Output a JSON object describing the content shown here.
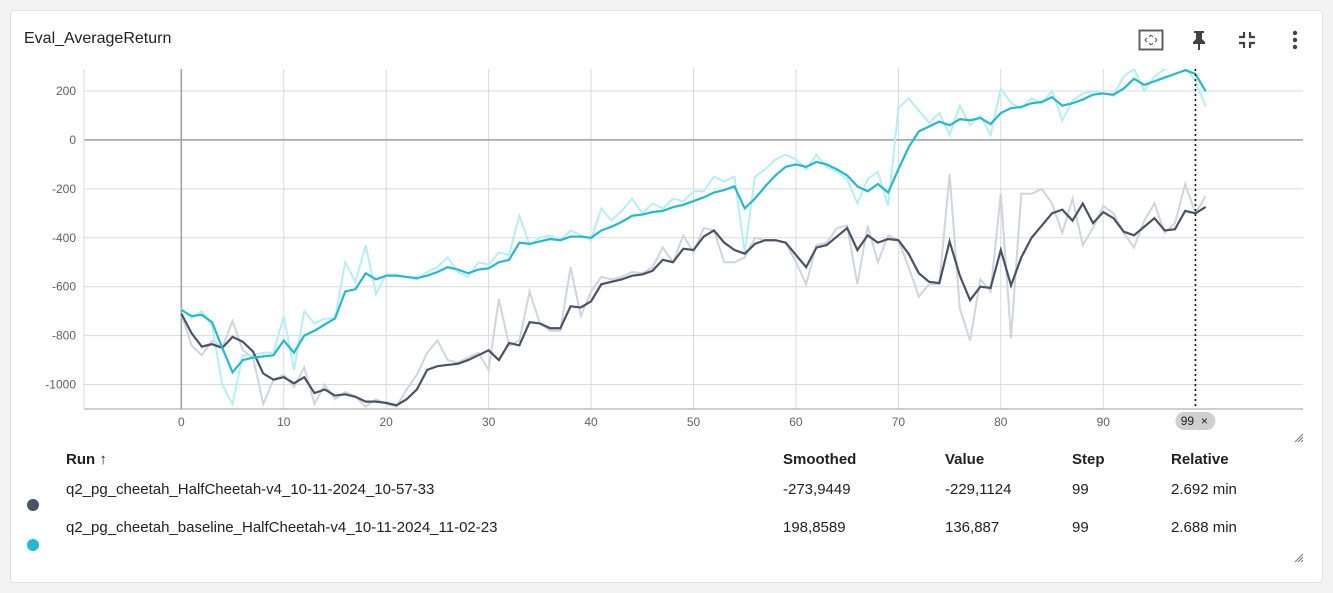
{
  "card": {
    "title": "Eval_AverageReturn"
  },
  "toolbar": {
    "icons": [
      "fit-domain-icon",
      "pin-icon",
      "collapse-icon",
      "more-vert-icon"
    ]
  },
  "chart_data": {
    "type": "line",
    "xlabel": "",
    "ylabel": "",
    "xlim": [
      -9.5,
      109.5
    ],
    "ylim": [
      -1100,
      290
    ],
    "x_ticks": [
      0,
      10,
      20,
      30,
      40,
      50,
      60,
      70,
      80,
      90
    ],
    "y_ticks": [
      -1000,
      -800,
      -600,
      -400,
      -200,
      0,
      200
    ],
    "x_tick_labels": [
      "0",
      "10",
      "20",
      "30",
      "40",
      "50",
      "60",
      "70",
      "80",
      "90"
    ],
    "y_tick_labels": [
      "-1000",
      "-800",
      "-600",
      "-400",
      "-200",
      "0",
      "200"
    ],
    "grid": true,
    "cursor_step": 99,
    "cursor_label": "99",
    "series": [
      {
        "name": "q2_pg_cheetah_HalfCheetah-v4_10-11-2024_10-57-33",
        "color": "#495366",
        "raw_color": "#cfd4dd",
        "smoothed": [
          -710,
          -790,
          -845,
          -835,
          -850,
          -805,
          -825,
          -865,
          -955,
          -980,
          -970,
          -995,
          -970,
          -1035,
          -1020,
          -1045,
          -1040,
          -1050,
          -1070,
          -1070,
          -1075,
          -1085,
          -1060,
          -1020,
          -940,
          -925,
          -920,
          -915,
          -900,
          -880,
          -860,
          -900,
          -830,
          -840,
          -745,
          -750,
          -770,
          -770,
          -680,
          -685,
          -660,
          -590,
          -580,
          -570,
          -555,
          -550,
          -535,
          -490,
          -500,
          -445,
          -450,
          -395,
          -370,
          -420,
          -450,
          -465,
          -425,
          -410,
          -410,
          -420,
          -470,
          -520,
          -440,
          -430,
          -395,
          -360,
          -450,
          -390,
          -420,
          -405,
          -410,
          -465,
          -545,
          -580,
          -585,
          -415,
          -555,
          -655,
          -600,
          -605,
          -450,
          -595,
          -480,
          -400,
          -350,
          -300,
          -285,
          -330,
          -260,
          -340,
          -295,
          -320,
          -375,
          -390,
          -355,
          -320,
          -370,
          -365,
          -290,
          -300,
          -274
        ],
        "raw": [
          -710,
          -840,
          -880,
          -820,
          -850,
          -740,
          -860,
          -890,
          -1080,
          -980,
          -960,
          -1010,
          -930,
          -1080,
          -1000,
          -1060,
          -1030,
          -1050,
          -1090,
          -1060,
          -1080,
          -1090,
          -1020,
          -960,
          -870,
          -820,
          -900,
          -910,
          -890,
          -870,
          -940,
          -650,
          -840,
          -820,
          -620,
          -750,
          -780,
          -780,
          -520,
          -720,
          -620,
          -560,
          -570,
          -560,
          -540,
          -545,
          -520,
          -440,
          -500,
          -390,
          -460,
          -360,
          -370,
          -500,
          -500,
          -480,
          -400,
          -410,
          -410,
          -420,
          -500,
          -590,
          -430,
          -420,
          -360,
          -350,
          -590,
          -350,
          -500,
          -390,
          -410,
          -520,
          -640,
          -590,
          -590,
          -140,
          -690,
          -820,
          -570,
          -620,
          -220,
          -810,
          -220,
          -220,
          -200,
          -260,
          -380,
          -240,
          -430,
          -360,
          -270,
          -300,
          -380,
          -440,
          -330,
          -260,
          -380,
          -340,
          -180,
          -300,
          -229
        ]
      },
      {
        "name": "q2_pg_cheetah_baseline_HalfCheetah-v4_10-11-2024_11-02-23",
        "color": "#26b9cb",
        "raw_color": "#b6eef4",
        "smoothed": [
          -695,
          -720,
          -715,
          -745,
          -850,
          -950,
          -900,
          -890,
          -885,
          -880,
          -820,
          -870,
          -800,
          -780,
          -755,
          -730,
          -620,
          -610,
          -545,
          -570,
          -555,
          -555,
          -560,
          -565,
          -555,
          -540,
          -520,
          -530,
          -545,
          -530,
          -525,
          -500,
          -490,
          -420,
          -425,
          -415,
          -405,
          -410,
          -395,
          -395,
          -400,
          -370,
          -355,
          -335,
          -310,
          -305,
          -295,
          -290,
          -275,
          -265,
          -250,
          -235,
          -215,
          -205,
          -190,
          -280,
          -240,
          -190,
          -145,
          -110,
          -100,
          -110,
          -90,
          -100,
          -120,
          -145,
          -190,
          -210,
          -180,
          -215,
          -120,
          -30,
          35,
          55,
          75,
          60,
          85,
          80,
          90,
          65,
          110,
          130,
          135,
          150,
          155,
          175,
          140,
          150,
          165,
          185,
          190,
          185,
          210,
          250,
          225,
          240,
          255,
          270,
          285,
          270,
          199
        ],
        "raw": [
          -690,
          -730,
          -700,
          -760,
          -1000,
          -1080,
          -880,
          -880,
          -870,
          -870,
          -720,
          -940,
          -700,
          -750,
          -730,
          -730,
          -500,
          -580,
          -430,
          -630,
          -550,
          -550,
          -560,
          -570,
          -540,
          -520,
          -480,
          -540,
          -560,
          -500,
          -510,
          -460,
          -470,
          -310,
          -430,
          -400,
          -390,
          -410,
          -370,
          -390,
          -410,
          -280,
          -330,
          -290,
          -240,
          -300,
          -260,
          -280,
          -240,
          -250,
          -210,
          -210,
          -150,
          -170,
          -150,
          -460,
          -150,
          -120,
          -80,
          -60,
          -80,
          -120,
          -60,
          -110,
          -130,
          -160,
          -260,
          -160,
          -130,
          -270,
          130,
          170,
          120,
          70,
          110,
          20,
          140,
          60,
          100,
          20,
          210,
          150,
          130,
          170,
          150,
          200,
          80,
          160,
          190,
          200,
          190,
          180,
          260,
          290,
          200,
          260,
          290,
          300,
          300,
          240,
          137
        ]
      }
    ]
  },
  "table": {
    "headers": {
      "run": "Run ↑",
      "smoothed": "Smoothed",
      "value": "Value",
      "step": "Step",
      "relative": "Relative"
    },
    "rows": [
      {
        "run": "q2_pg_cheetah_HalfCheetah-v4_10-11-2024_10-57-33",
        "smoothed": "-273,9449",
        "value": "-229,1124",
        "step": "99",
        "relative": "2.692 min",
        "color": "#495366"
      },
      {
        "run": "q2_pg_cheetah_baseline_HalfCheetah-v4_10-11-2024_11-02-23",
        "smoothed": "198,8589",
        "value": "136,887",
        "step": "99",
        "relative": "2.688 min",
        "color": "#26b9cb"
      }
    ]
  }
}
